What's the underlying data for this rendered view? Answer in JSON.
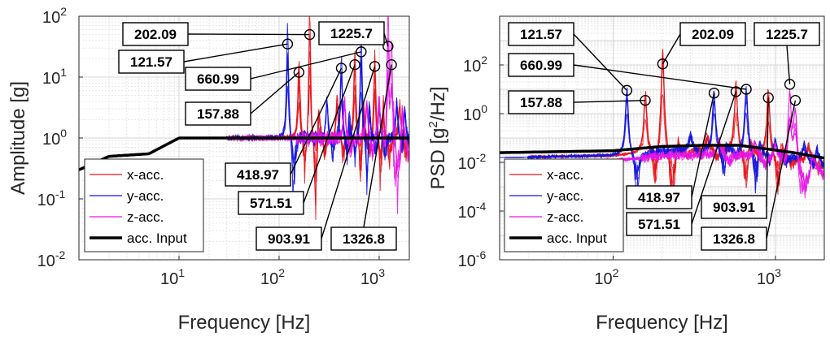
{
  "chart_data": [
    {
      "type": "line",
      "id": "amplitude",
      "title": "",
      "xlabel": "Frequency [Hz]",
      "ylabel": "Amplitude [g]",
      "xscale": "log",
      "yscale": "log",
      "xlim": [
        1,
        2000
      ],
      "ylim": [
        0.01,
        100
      ],
      "xticks": [
        {
          "value": 10,
          "base": "10",
          "exp": "1"
        },
        {
          "value": 100,
          "base": "10",
          "exp": "2"
        },
        {
          "value": 1000,
          "base": "10",
          "exp": "3"
        }
      ],
      "yticks": [
        {
          "value": 0.01,
          "base": "10",
          "exp": "-2"
        },
        {
          "value": 0.1,
          "base": "10",
          "exp": "-1"
        },
        {
          "value": 1,
          "base": "10",
          "exp": "0"
        },
        {
          "value": 10,
          "base": "10",
          "exp": "1"
        },
        {
          "value": 100,
          "base": "10",
          "exp": "2"
        }
      ],
      "grid": true,
      "legend_position": "bottom-left",
      "series": [
        {
          "name": "x-acc.",
          "color": "#e8141b"
        },
        {
          "name": "y-acc.",
          "color": "#1414e0"
        },
        {
          "name": "z-acc.",
          "color": "#e814e8"
        },
        {
          "name": "acc. Input",
          "color": "#000000"
        }
      ],
      "input_curve": {
        "x": [
          1,
          2,
          5,
          10,
          2000
        ],
        "y": [
          0.3,
          0.5,
          0.55,
          1.0,
          1.0
        ]
      },
      "peaks": [
        {
          "label": "202.09",
          "x": 202.09,
          "y": 50,
          "series": "x-acc."
        },
        {
          "label": "121.57",
          "x": 121.57,
          "y": 35,
          "series": "y-acc."
        },
        {
          "label": "157.88",
          "x": 157.88,
          "y": 12,
          "series": "x-acc."
        },
        {
          "label": "418.97",
          "x": 418.97,
          "y": 14,
          "series": "y-acc."
        },
        {
          "label": "571.51",
          "x": 571.51,
          "y": 16,
          "series": "x-acc."
        },
        {
          "label": "660.99",
          "x": 660.99,
          "y": 26,
          "series": "y-acc."
        },
        {
          "label": "903.91",
          "x": 903.91,
          "y": 15,
          "series": "x-acc."
        },
        {
          "label": "1225.7",
          "x": 1225.7,
          "y": 32,
          "series": "z-acc."
        },
        {
          "label": "1326.8",
          "x": 1326.8,
          "y": 16,
          "series": "z-acc."
        }
      ]
    },
    {
      "type": "line",
      "id": "psd",
      "title": "",
      "xlabel": "Frequency [Hz]",
      "ylabel": "PSD [g²/Hz]",
      "ylabel_base": "PSD [g",
      "ylabel_exp": "2",
      "ylabel_tail": "/Hz]",
      "xscale": "log",
      "yscale": "log",
      "xlim": [
        20,
        2000
      ],
      "ylim": [
        1e-06,
        10000
      ],
      "xticks": [
        {
          "value": 100,
          "base": "10",
          "exp": "2"
        },
        {
          "value": 1000,
          "base": "10",
          "exp": "3"
        }
      ],
      "yticks": [
        {
          "value": 1e-06,
          "base": "10",
          "exp": "-6"
        },
        {
          "value": 0.0001,
          "base": "10",
          "exp": "-4"
        },
        {
          "value": 0.01,
          "base": "10",
          "exp": "-2"
        },
        {
          "value": 1,
          "base": "10",
          "exp": "0"
        },
        {
          "value": 100,
          "base": "10",
          "exp": "2"
        }
      ],
      "grid": true,
      "legend_position": "bottom-left",
      "series": [
        {
          "name": "x-acc.",
          "color": "#e8141b"
        },
        {
          "name": "y-acc.",
          "color": "#1414e0"
        },
        {
          "name": "z-acc.",
          "color": "#e814e8"
        },
        {
          "name": "acc. Input",
          "color": "#000000"
        }
      ],
      "input_curve": {
        "x": [
          20,
          100,
          200,
          350,
          600,
          900,
          1300,
          2000
        ],
        "y": [
          0.025,
          0.03,
          0.045,
          0.05,
          0.05,
          0.035,
          0.025,
          0.015
        ]
      },
      "peaks": [
        {
          "label": "121.57",
          "x": 121.57,
          "y": 9,
          "series": "y-acc."
        },
        {
          "label": "202.09",
          "x": 202.09,
          "y": 110,
          "series": "x-acc."
        },
        {
          "label": "157.88",
          "x": 157.88,
          "y": 3.5,
          "series": "x-acc."
        },
        {
          "label": "418.97",
          "x": 418.97,
          "y": 7,
          "series": "y-acc."
        },
        {
          "label": "571.51",
          "x": 571.51,
          "y": 8,
          "series": "x-acc."
        },
        {
          "label": "660.99",
          "x": 660.99,
          "y": 10,
          "series": "y-acc."
        },
        {
          "label": "903.91",
          "x": 903.91,
          "y": 4.5,
          "series": "x-acc."
        },
        {
          "label": "1225.7",
          "x": 1225.7,
          "y": 16,
          "series": "z-acc."
        },
        {
          "label": "1326.8",
          "x": 1326.8,
          "y": 3.5,
          "series": "z-acc."
        }
      ]
    }
  ]
}
